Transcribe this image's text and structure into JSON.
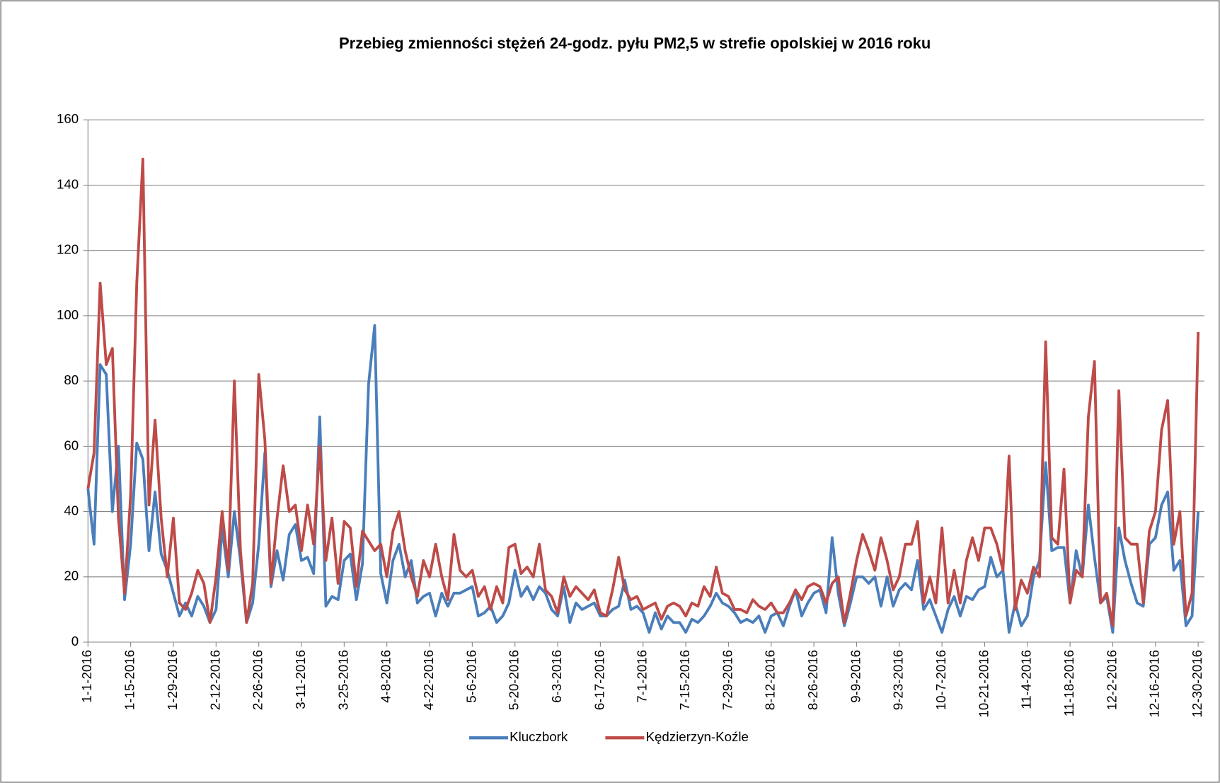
{
  "chart_data": {
    "type": "line",
    "title": "Przebieg zmienności stężeń  24-godz.  pyłu PM2,5 w strefie opolskiej w 2016 roku",
    "categories": [
      "1-1-2016",
      null,
      null,
      null,
      null,
      null,
      null,
      "1-15-2016",
      null,
      null,
      null,
      null,
      null,
      null,
      "1-29-2016",
      null,
      null,
      null,
      null,
      null,
      null,
      "2-12-2016",
      null,
      null,
      null,
      null,
      null,
      null,
      "2-26-2016",
      null,
      null,
      null,
      null,
      null,
      null,
      "3-11-2016",
      null,
      null,
      null,
      null,
      null,
      null,
      "3-25-2016",
      null,
      null,
      null,
      null,
      null,
      null,
      "4-8-2016",
      null,
      null,
      null,
      null,
      null,
      null,
      "4-22-2016",
      null,
      null,
      null,
      null,
      null,
      null,
      "5-6-2016",
      null,
      null,
      null,
      null,
      null,
      null,
      "5-20-2016",
      null,
      null,
      null,
      null,
      null,
      null,
      "6-3-2016",
      null,
      null,
      null,
      null,
      null,
      null,
      "6-17-2016",
      null,
      null,
      null,
      null,
      null,
      null,
      "7-1-2016",
      null,
      null,
      null,
      null,
      null,
      null,
      "7-15-2016",
      null,
      null,
      null,
      null,
      null,
      null,
      "7-29-2016",
      null,
      null,
      null,
      null,
      null,
      null,
      "8-12-2016",
      null,
      null,
      null,
      null,
      null,
      null,
      "8-26-2016",
      null,
      null,
      null,
      null,
      null,
      null,
      "9-9-2016",
      null,
      null,
      null,
      null,
      null,
      null,
      "9-23-2016",
      null,
      null,
      null,
      null,
      null,
      null,
      "10-7-2016",
      null,
      null,
      null,
      null,
      null,
      null,
      "10-21-2016",
      null,
      null,
      null,
      null,
      null,
      null,
      "11-4-2016",
      null,
      null,
      null,
      null,
      null,
      null,
      "11-18-2016",
      null,
      null,
      null,
      null,
      null,
      null,
      "12-2-2016",
      null,
      null,
      null,
      null,
      null,
      null,
      "12-16-2016",
      null,
      null,
      null,
      null,
      null,
      null,
      "12-30-2016"
    ],
    "series": [
      {
        "name": "Kluczbork",
        "color": "#4a7ebb",
        "values": [
          47,
          30,
          85,
          82,
          40,
          60,
          13,
          30,
          61,
          56,
          28,
          46,
          27,
          22,
          15,
          8,
          12,
          8,
          14,
          11,
          6,
          10,
          35,
          20,
          40,
          25,
          6,
          12,
          30,
          58,
          17,
          28,
          19,
          33,
          36,
          25,
          26,
          21,
          69,
          11,
          14,
          13,
          25,
          27,
          13,
          24,
          79,
          97,
          21,
          12,
          25,
          30,
          20,
          25,
          12,
          14,
          15,
          8,
          15,
          11,
          15,
          15,
          16,
          17,
          8,
          9,
          11,
          6,
          8,
          12,
          22,
          14,
          17,
          13,
          17,
          15,
          10,
          8,
          17,
          6,
          12,
          10,
          11,
          12,
          8,
          8,
          10,
          11,
          19,
          10,
          11,
          9,
          3,
          9,
          4,
          8,
          6,
          6,
          3,
          7,
          6,
          8,
          11,
          15,
          12,
          11,
          9,
          6,
          7,
          6,
          8,
          3,
          8,
          9,
          5,
          11,
          16,
          8,
          12,
          15,
          16,
          9,
          32,
          15,
          5,
          12,
          20,
          20,
          18,
          20,
          11,
          20,
          11,
          16,
          18,
          16,
          25,
          10,
          13,
          8,
          3,
          10,
          14,
          8,
          14,
          13,
          16,
          17,
          26,
          20,
          22,
          3,
          12,
          5,
          8,
          20,
          25,
          55,
          28,
          29,
          29,
          12,
          28,
          20,
          42,
          26,
          12,
          14,
          3,
          35,
          25,
          18,
          12,
          11,
          30,
          32,
          42,
          46,
          22,
          25,
          5,
          8,
          40
        ]
      },
      {
        "name": "Kędzierzyn-Koźle",
        "color": "#be4b48",
        "values": [
          47,
          58,
          110,
          85,
          90,
          38,
          15,
          45,
          110,
          148,
          42,
          68,
          38,
          20,
          38,
          12,
          10,
          15,
          22,
          18,
          6,
          20,
          40,
          22,
          80,
          28,
          6,
          18,
          82,
          62,
          18,
          38,
          54,
          40,
          42,
          28,
          42,
          30,
          60,
          25,
          38,
          18,
          37,
          35,
          17,
          34,
          31,
          28,
          30,
          20,
          34,
          40,
          28,
          20,
          14,
          25,
          20,
          30,
          20,
          13,
          33,
          22,
          20,
          22,
          14,
          17,
          10,
          17,
          12,
          29,
          30,
          21,
          23,
          20,
          30,
          16,
          14,
          9,
          20,
          14,
          17,
          15,
          13,
          16,
          9,
          8,
          16,
          26,
          16,
          13,
          14,
          10,
          11,
          12,
          7,
          11,
          12,
          11,
          8,
          12,
          11,
          17,
          14,
          23,
          15,
          14,
          10,
          10,
          9,
          13,
          11,
          10,
          12,
          9,
          9,
          12,
          16,
          13,
          17,
          18,
          17,
          12,
          18,
          20,
          6,
          15,
          25,
          33,
          28,
          22,
          32,
          25,
          16,
          20,
          30,
          30,
          37,
          12,
          20,
          12,
          35,
          12,
          22,
          12,
          25,
          32,
          25,
          35,
          35,
          30,
          22,
          57,
          10,
          19,
          15,
          23,
          20,
          92,
          32,
          30,
          53,
          12,
          22,
          20,
          69,
          86,
          12,
          15,
          5,
          77,
          32,
          30,
          30,
          12,
          34,
          40,
          65,
          74,
          30,
          40,
          8,
          15,
          95
        ]
      }
    ],
    "ylim": [
      0,
      160
    ],
    "yticks": [
      0,
      20,
      40,
      60,
      80,
      100,
      120,
      140,
      160
    ],
    "grid": true,
    "legend": "bottom"
  }
}
